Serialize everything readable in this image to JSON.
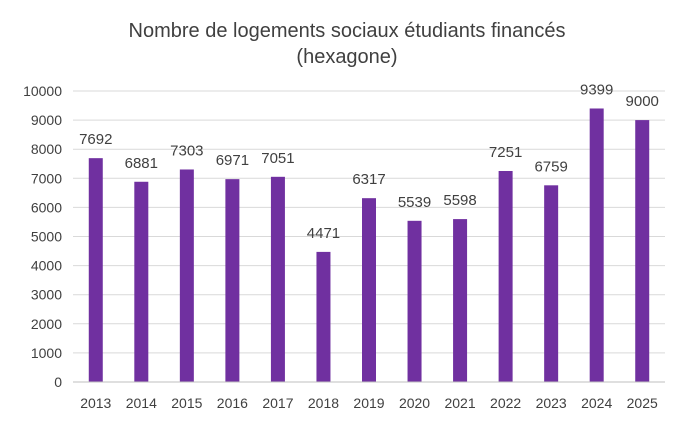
{
  "chart_data": {
    "type": "bar",
    "title": "Nombre de logements sociaux étudiants financés",
    "subtitle": "(hexagone)",
    "xlabel": "",
    "ylabel": "",
    "categories": [
      "2013",
      "2014",
      "2015",
      "2016",
      "2017",
      "2018",
      "2019",
      "2020",
      "2021",
      "2022",
      "2023",
      "2024",
      "2025"
    ],
    "values": [
      7692,
      6881,
      7303,
      6971,
      7051,
      4471,
      6317,
      5539,
      5598,
      7251,
      6759,
      9399,
      9000
    ],
    "ylim": [
      0,
      10000
    ],
    "yticks": [
      0,
      1000,
      2000,
      3000,
      4000,
      5000,
      6000,
      7000,
      8000,
      9000,
      10000
    ],
    "grid": true,
    "legend": "none",
    "colors": {
      "bar": "#7030A0",
      "grid": "#d9d9d9",
      "axis": "#bfbfbf",
      "text": "#404040",
      "title": "#404040"
    }
  }
}
